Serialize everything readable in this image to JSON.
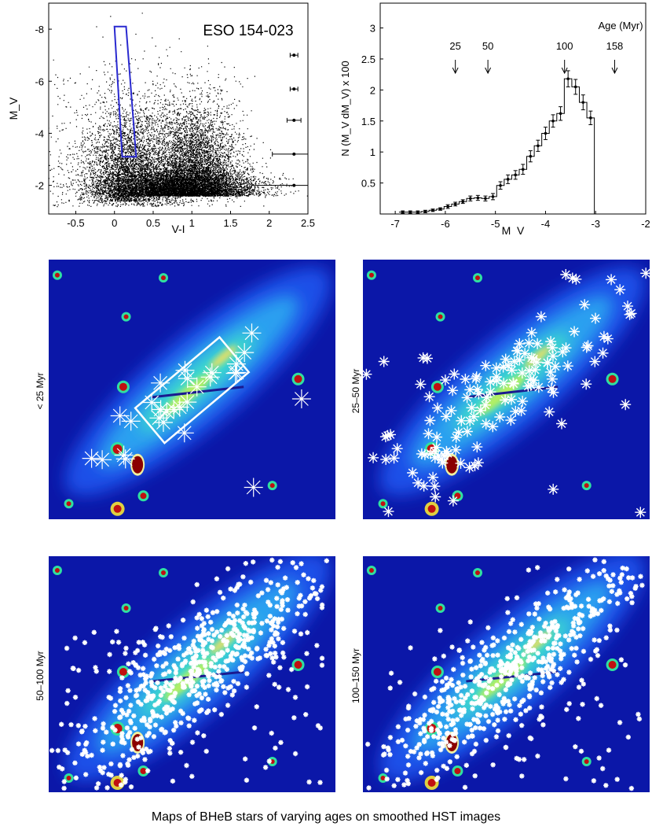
{
  "chart_data": [
    {
      "type": "scatter",
      "title": "ESO 154-023",
      "xlabel": "V-I",
      "ylabel": "M_V",
      "xlim": [
        -0.85,
        2.5
      ],
      "ylim": [
        -0.9,
        -9.0
      ],
      "x_ticks": [
        "-0.5",
        "0",
        "0.5",
        "1",
        "1.5",
        "2",
        "2.5"
      ],
      "y_ticks": [
        "-8",
        "-6",
        "-4",
        "-2"
      ],
      "selection_box": [
        [
          0.0,
          -8.1
        ],
        [
          0.15,
          -8.1
        ],
        [
          0.28,
          -3.1
        ],
        [
          0.1,
          -3.1
        ]
      ],
      "selection_color": "#2a2ad0",
      "error_bars": [
        {
          "x": 2.32,
          "y": -7.0,
          "xerr": 0.05
        },
        {
          "x": 2.32,
          "y": -5.7,
          "xerr": 0.05
        },
        {
          "x": 2.32,
          "y": -4.5,
          "xerr": 0.09
        },
        {
          "x": 2.32,
          "y": -3.2,
          "xerr": 0.28
        },
        {
          "x": 2.32,
          "y": -2.0,
          "xerr": 0.55
        }
      ]
    },
    {
      "type": "line",
      "xlabel": "M_V",
      "ylabel": "N (M_V dM_V) x 100",
      "xlim": [
        -7.3,
        -2.0
      ],
      "ylim": [
        0,
        3.4
      ],
      "x_ticks": [
        "-7",
        "-6",
        "-5",
        "-4",
        "-3",
        "-2"
      ],
      "y_ticks": [
        "0.5",
        "1",
        "1.5",
        "2",
        "2.5",
        "3"
      ],
      "bin_width": 0.15,
      "bin_centers": [
        -6.85,
        -6.7,
        -6.55,
        -6.4,
        -6.25,
        -6.1,
        -5.95,
        -5.8,
        -5.65,
        -5.5,
        -5.35,
        -5.2,
        -5.05,
        -4.9,
        -4.75,
        -4.6,
        -4.45,
        -4.3,
        -4.15,
        -4.0,
        -3.85,
        -3.7,
        -3.55,
        -3.4,
        -3.25,
        -3.1
      ],
      "values": [
        0.03,
        0.03,
        0.03,
        0.04,
        0.06,
        0.08,
        0.12,
        0.16,
        0.2,
        0.25,
        0.26,
        0.25,
        0.28,
        0.46,
        0.56,
        0.63,
        0.72,
        0.93,
        1.1,
        1.3,
        1.5,
        1.62,
        2.18,
        2.05,
        1.8,
        1.55
      ],
      "errors": [
        0.02,
        0.02,
        0.02,
        0.02,
        0.02,
        0.02,
        0.03,
        0.03,
        0.03,
        0.04,
        0.04,
        0.04,
        0.05,
        0.06,
        0.07,
        0.07,
        0.08,
        0.09,
        0.09,
        0.1,
        0.1,
        0.11,
        0.13,
        0.12,
        0.12,
        0.11
      ],
      "age_annotation_title": "Age (Myr)",
      "age_markers": [
        {
          "label": "25",
          "mv": -5.8
        },
        {
          "label": "50",
          "mv": -5.15
        },
        {
          "label": "100",
          "mv": -3.62
        },
        {
          "label": "158",
          "mv": -2.62
        }
      ]
    }
  ],
  "maps": [
    {
      "label": "< 25 Myr",
      "marker": "large",
      "count": 28
    },
    {
      "label": "25–50 Myr",
      "marker": "medium",
      "count": 150
    },
    {
      "label": "50–100 Myr",
      "marker": "small",
      "count": 700
    },
    {
      "label": "100–150 Myr",
      "marker": "small",
      "count": 640
    }
  ],
  "caption": "Maps of BHeB stars of varying ages on smoothed HST images"
}
